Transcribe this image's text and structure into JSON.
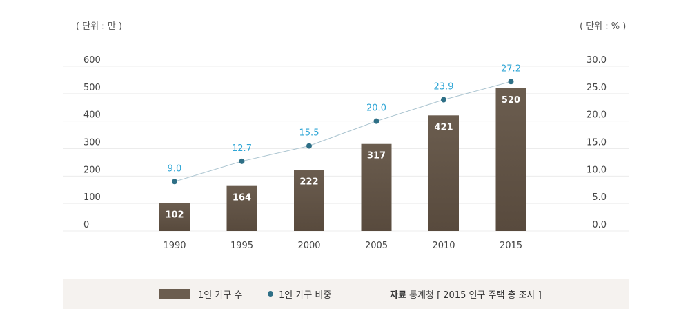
{
  "chart_data": {
    "type": "bar",
    "categories": [
      "1990",
      "1995",
      "2000",
      "2005",
      "2010",
      "2015"
    ],
    "series": [
      {
        "name": "1인 가구 수",
        "type": "bar",
        "axis": "left",
        "values": [
          102,
          164,
          222,
          317,
          421,
          520
        ]
      },
      {
        "name": "1인 가구 비중",
        "type": "line",
        "axis": "right",
        "values": [
          9.0,
          12.7,
          15.5,
          20.0,
          23.9,
          27.2
        ]
      }
    ],
    "y_left": {
      "unit_label": "( 단위 : 만 )",
      "ylim": [
        0,
        600
      ],
      "ticks": [
        "600",
        "500",
        "400",
        "300",
        "200",
        "100",
        "0"
      ]
    },
    "y_right": {
      "unit_label": "( 단위 : % )",
      "ylim": [
        0,
        30
      ],
      "ticks": [
        "30.0",
        "25.0",
        "20.0",
        "15.0",
        "10.0",
        "5.0",
        "0.0"
      ]
    },
    "grid": true,
    "legend_position": "bottom",
    "colors": {
      "bar": "#6b5d4f",
      "bar_dark": "#584a3d",
      "line": "#a9c3cf",
      "point": "#2e6f86",
      "point_label": "#2fa6d6"
    }
  },
  "legend": {
    "bar_label": "1인 가구 수",
    "line_label": "1인 가구 비중",
    "source_prefix": "자료",
    "source_text": " 통계청 [ 2015 인구 주택 총 조사 ]"
  }
}
